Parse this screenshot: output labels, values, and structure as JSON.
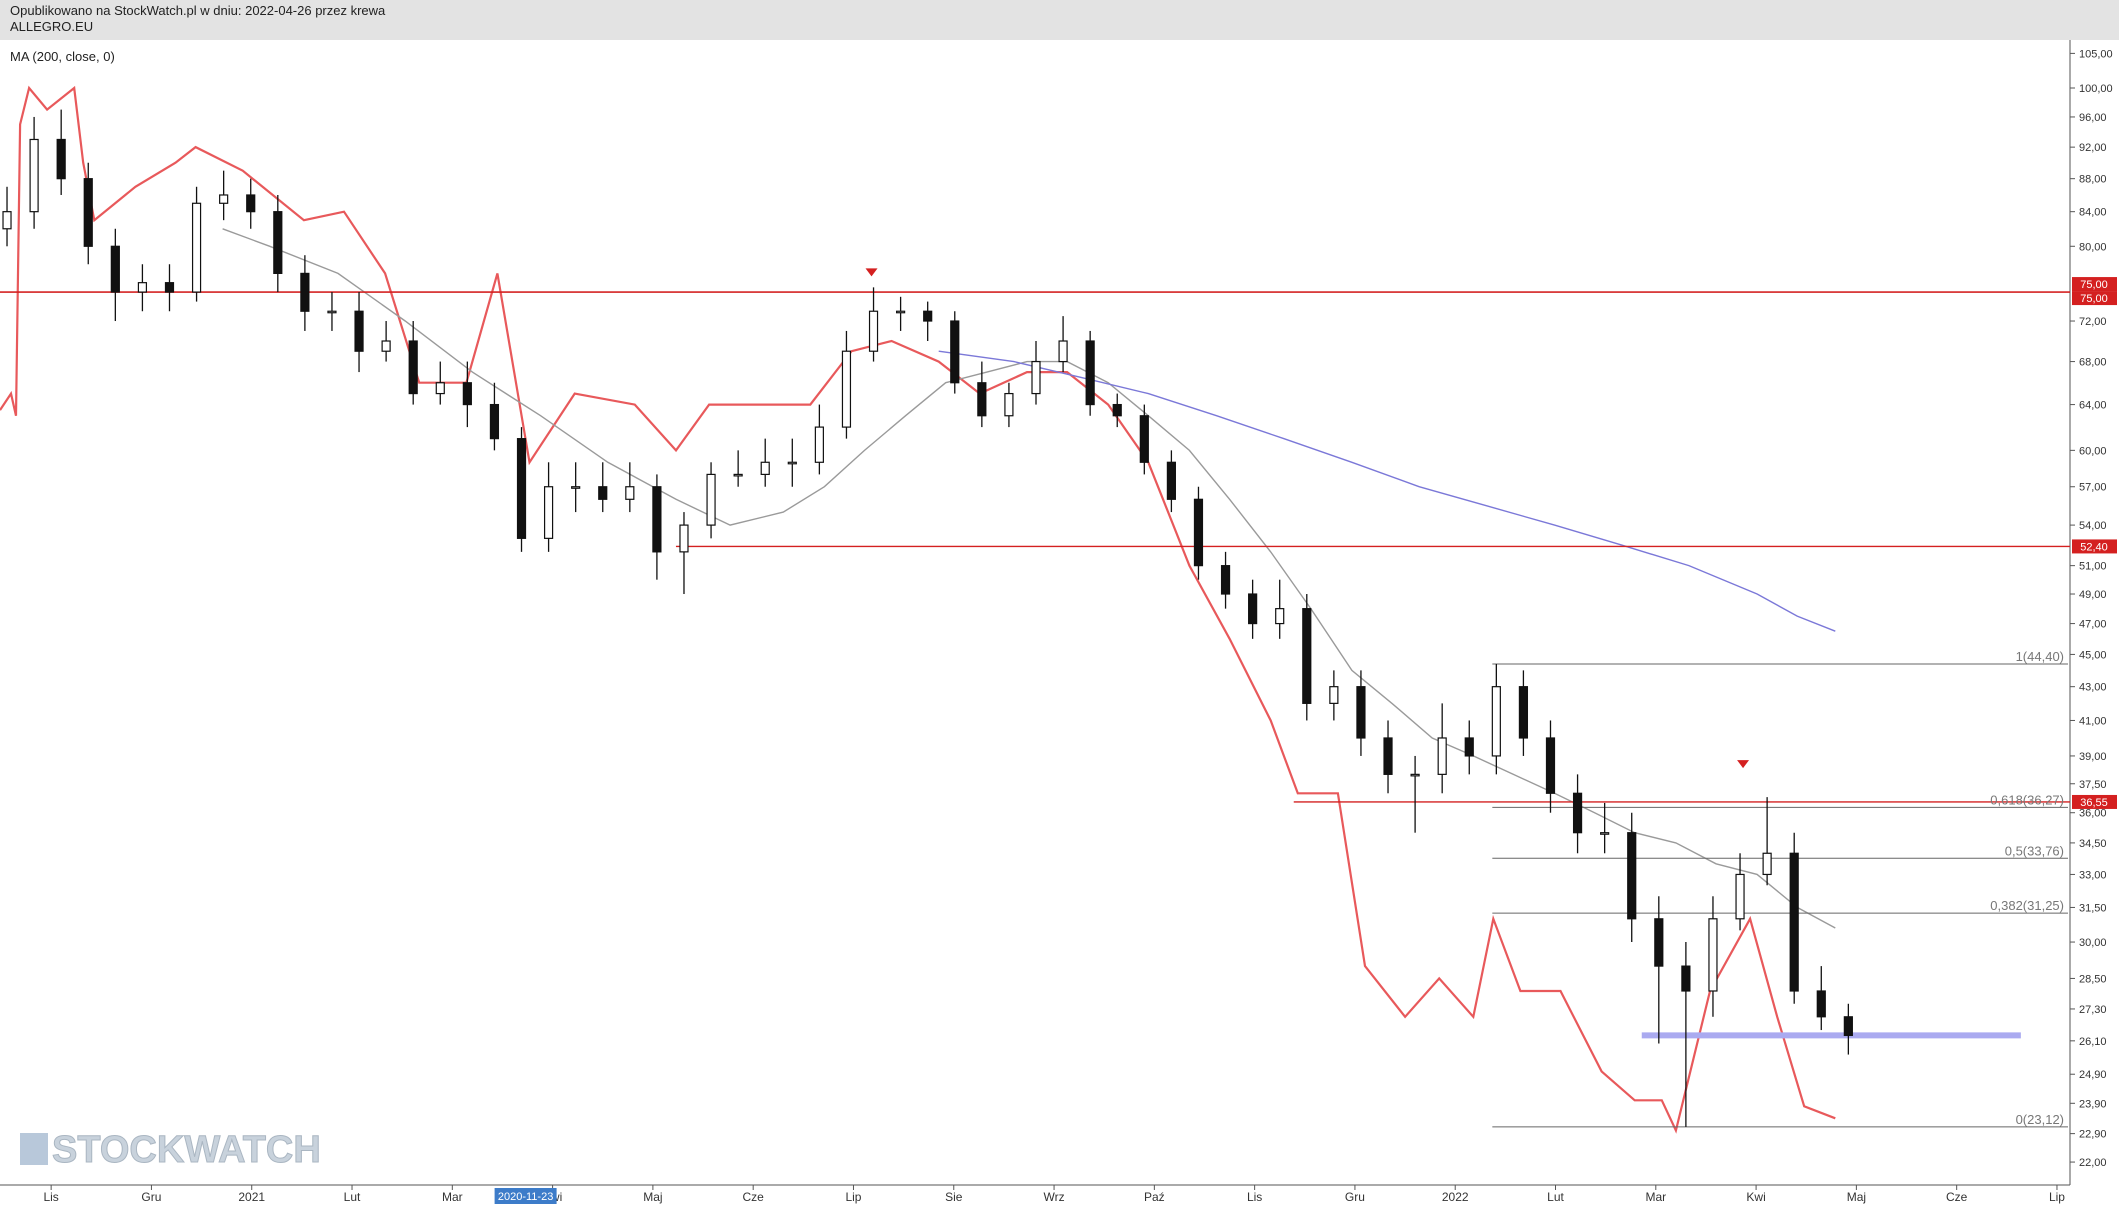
{
  "header": {
    "published": "Opublikowano na StockWatch.pl w dniu: 2022-04-26 przez krewa",
    "symbol": "ALLEGRO.EU"
  },
  "indicator_label": "MA (200, close, 0)",
  "watermark": "STOCKWATCH",
  "chart_data": {
    "type": "candlestick",
    "log_scale": true,
    "grid": false,
    "crosshair_label": "2020-11-23",
    "xlim": [
      0.49,
      21.13
    ],
    "xticks": [
      {
        "value": 1,
        "label": "Lis"
      },
      {
        "value": 2,
        "label": "Gru"
      },
      {
        "value": 3,
        "label": "2021"
      },
      {
        "value": 4,
        "label": "Lut"
      },
      {
        "value": 5,
        "label": "Mar"
      },
      {
        "value": 6,
        "label": "Kwi"
      },
      {
        "value": 7,
        "label": "Maj"
      },
      {
        "value": 8,
        "label": "Cze"
      },
      {
        "value": 9,
        "label": "Lip"
      },
      {
        "value": 10,
        "label": "Sie"
      },
      {
        "value": 11,
        "label": "Wrz"
      },
      {
        "value": 12,
        "label": "Paź"
      },
      {
        "value": 13,
        "label": "Lis"
      },
      {
        "value": 14,
        "label": "Gru"
      },
      {
        "value": 15,
        "label": "2022"
      },
      {
        "value": 16,
        "label": "Lut"
      },
      {
        "value": 17,
        "label": "Mar"
      },
      {
        "value": 18,
        "label": "Kwi"
      },
      {
        "value": 19,
        "label": "Maj"
      },
      {
        "value": 20,
        "label": "Cze"
      },
      {
        "value": 21,
        "label": "Lip"
      }
    ],
    "ylim": [
      21.3,
      107
    ],
    "yticks": [
      {
        "value": 105,
        "label": "105,00"
      },
      {
        "value": 100,
        "label": "100,00"
      },
      {
        "value": 96,
        "label": "96,00"
      },
      {
        "value": 92,
        "label": "92,00"
      },
      {
        "value": 88,
        "label": "88,00"
      },
      {
        "value": 84,
        "label": "84,00"
      },
      {
        "value": 80,
        "label": "80,00"
      },
      {
        "value": 72,
        "label": "72,00"
      },
      {
        "value": 68,
        "label": "68,00"
      },
      {
        "value": 64,
        "label": "64,00"
      },
      {
        "value": 60,
        "label": "60,00"
      },
      {
        "value": 57,
        "label": "57,00"
      },
      {
        "value": 54,
        "label": "54,00"
      },
      {
        "value": 51,
        "label": "51,00"
      },
      {
        "value": 49,
        "label": "49,00"
      },
      {
        "value": 47,
        "label": "47,00"
      },
      {
        "value": 45,
        "label": "45,00"
      },
      {
        "value": 43,
        "label": "43,00"
      },
      {
        "value": 41,
        "label": "41,00"
      },
      {
        "value": 39,
        "label": "39,00"
      },
      {
        "value": 37.5,
        "label": "37,50"
      },
      {
        "value": 36,
        "label": "36,00"
      },
      {
        "value": 34.5,
        "label": "34,50"
      },
      {
        "value": 33,
        "label": "33,00"
      },
      {
        "value": 31.5,
        "label": "31,50"
      },
      {
        "value": 30,
        "label": "30,00"
      },
      {
        "value": 28.5,
        "label": "28,50"
      },
      {
        "value": 27.3,
        "label": "27,30"
      },
      {
        "value": 26.1,
        "label": "26,10"
      },
      {
        "value": 24.9,
        "label": "24,90"
      },
      {
        "value": 23.9,
        "label": "23,90"
      },
      {
        "value": 22.9,
        "label": "22,90"
      },
      {
        "value": 22,
        "label": "22,00"
      }
    ],
    "candle_color": "#111111",
    "x": [
      0.56,
      0.83,
      1.1,
      1.37,
      1.64,
      1.91,
      2.18,
      2.45,
      2.72,
      2.99,
      3.26,
      3.53,
      3.8,
      4.07,
      4.34,
      4.61,
      4.88,
      5.15,
      5.42,
      5.69,
      5.96,
      6.23,
      6.5,
      6.77,
      7.04,
      7.31,
      7.58,
      7.85,
      8.12,
      8.39,
      8.66,
      8.93,
      9.2,
      9.47,
      9.74,
      10.01,
      10.28,
      10.55,
      10.82,
      11.09,
      11.36,
      11.63,
      11.9,
      12.17,
      12.44,
      12.71,
      12.98,
      13.25,
      13.52,
      13.79,
      14.06,
      14.33,
      14.6,
      14.87,
      15.14,
      15.41,
      15.68,
      15.95,
      16.22,
      16.49,
      16.76,
      17.03,
      17.3,
      17.57,
      17.84,
      18.11,
      18.38,
      18.65,
      18.92
    ],
    "open": [
      82,
      84,
      93,
      88,
      80,
      75,
      76,
      75,
      85,
      86,
      84,
      77,
      73,
      73,
      69,
      70,
      65,
      66,
      64,
      61,
      53,
      57,
      57,
      56,
      57,
      52,
      54,
      58,
      58,
      59,
      59,
      62,
      69,
      73,
      73,
      72,
      66,
      63,
      65,
      68,
      70,
      64,
      63,
      59,
      56,
      51,
      49,
      47,
      48,
      42,
      43,
      40,
      38,
      38,
      40,
      39,
      43,
      40,
      37,
      35,
      35,
      31,
      29,
      28,
      31,
      33,
      34,
      28,
      27
    ],
    "high": [
      87,
      96,
      97,
      90,
      82,
      78,
      78,
      87,
      89,
      88,
      86,
      79,
      75,
      75,
      72,
      72,
      68,
      68,
      66,
      62,
      59,
      59,
      59,
      59,
      58,
      55,
      59,
      60,
      61,
      61,
      64,
      71,
      75.5,
      74.5,
      74,
      73,
      68,
      66,
      70,
      72.5,
      71,
      65,
      64,
      60,
      57,
      52,
      50,
      50,
      49,
      44,
      44,
      41,
      39,
      42,
      41,
      44.4,
      44,
      41,
      38,
      36.5,
      36,
      32,
      30,
      32,
      34,
      36.8,
      35,
      29,
      27.5
    ],
    "low": [
      80,
      82,
      86,
      78,
      72,
      73,
      73,
      74,
      83,
      82,
      75,
      71,
      71,
      67,
      68,
      64,
      64,
      62,
      60,
      52,
      52,
      55,
      55,
      55,
      50,
      49,
      53,
      57,
      57,
      57,
      58,
      61,
      68,
      71,
      70,
      65,
      62,
      62,
      64,
      67,
      63,
      62,
      58,
      55,
      50,
      48,
      46,
      46,
      41,
      41,
      39,
      37,
      35,
      37,
      38,
      38,
      39,
      36,
      34,
      34,
      30,
      26,
      23.12,
      27,
      30.5,
      32.5,
      27.5,
      26.5,
      25.6
    ],
    "close": [
      84,
      93,
      88,
      80,
      75,
      76,
      75,
      85,
      86,
      84,
      77,
      73,
      73,
      69,
      70,
      65,
      66,
      64,
      61,
      53,
      57,
      57,
      56,
      57,
      52,
      54,
      58,
      58,
      59,
      59,
      62,
      69,
      73,
      73,
      72,
      66,
      63,
      65,
      68,
      70,
      64,
      63,
      59,
      56,
      51,
      49,
      47,
      48,
      42,
      43,
      40,
      38,
      38,
      40,
      39,
      43,
      40,
      37,
      35,
      35,
      31,
      29,
      28,
      31,
      33,
      34,
      28,
      27,
      26.3
    ],
    "series": [
      {
        "color": "#e8595b",
        "x": [
          0.49,
          0.6,
          0.65,
          0.69,
          0.78,
          0.96,
          1.23,
          1.32,
          1.43,
          1.84,
          2.24,
          2.44,
          2.91,
          3.52,
          3.92,
          4.33,
          4.67,
          5.14,
          5.45,
          5.77,
          6.22,
          6.82,
          7.23,
          7.56,
          8.1,
          8.57,
          8.98,
          9.38,
          9.85,
          10.26,
          10.73,
          11.13,
          11.54,
          11.94,
          12.35,
          12.75,
          13.16,
          13.43,
          13.83,
          14.1,
          14.5,
          14.84,
          15.18,
          15.38,
          15.65,
          16.05,
          16.46,
          16.79,
          17.06,
          17.2,
          17.54,
          17.94,
          18.21,
          18.48,
          18.79
        ],
        "values": [
          63.5,
          65,
          63,
          95,
          100,
          97,
          100,
          90,
          83,
          87,
          90,
          92,
          89,
          83,
          84,
          77,
          66,
          66,
          77,
          59,
          65,
          64,
          60,
          64,
          64,
          64,
          69,
          70,
          68,
          65,
          67,
          67,
          64,
          59,
          51,
          46,
          41,
          37,
          37,
          29,
          27,
          28.5,
          27,
          31,
          28,
          28,
          25,
          24,
          24,
          23,
          28,
          31,
          27,
          23.8,
          23.4
        ]
      },
      {
        "color": "#9a9a9a",
        "x": [
          2.71,
          3.18,
          3.86,
          4.53,
          5.2,
          5.88,
          6.55,
          7.23,
          7.77,
          8.3,
          8.71,
          9.11,
          9.52,
          9.92,
          10.33,
          10.73,
          11.13,
          11.54,
          11.94,
          12.35,
          12.75,
          13.16,
          13.56,
          13.97,
          14.37,
          14.77,
          15.18,
          15.58,
          15.99,
          16.39,
          16.79,
          17.2,
          17.6,
          18.01,
          18.41,
          18.79
        ],
        "values": [
          82,
          80,
          77,
          72,
          67,
          63,
          59,
          56,
          54,
          55,
          57,
          60,
          63,
          66,
          67,
          68,
          68,
          66,
          63,
          60,
          56,
          52,
          48,
          44,
          42,
          40,
          39,
          38,
          37,
          36,
          35,
          34.5,
          33.5,
          33,
          31.5,
          30.6
        ]
      },
      {
        "color": "#7b78d8",
        "x": [
          9.85,
          10.6,
          11.27,
          11.94,
          12.62,
          13.29,
          13.97,
          14.64,
          15.31,
          15.99,
          16.66,
          17.33,
          18.01,
          18.41,
          18.79
        ],
        "values": [
          69,
          68,
          66.5,
          65,
          63,
          61,
          59,
          57,
          55.5,
          54,
          52.5,
          51,
          49,
          47.5,
          46.5
        ]
      }
    ],
    "hlines": [
      {
        "value": 75,
        "label": "75,00",
        "x0": 0.49
      },
      {
        "value": 75,
        "label": "75,00",
        "x0": 0.49
      },
      {
        "value": 52.4,
        "label": "52,40",
        "x0": 7.23
      },
      {
        "value": 36.55,
        "label": "36,55",
        "x0": 13.39
      }
    ],
    "hline_color": "#d42020",
    "fib_x0": 15.37,
    "fib_levels": [
      {
        "value": 44.4,
        "label": "1(44,40)"
      },
      {
        "value": 36.27,
        "label": "0,618(36,27)"
      },
      {
        "value": 33.76,
        "label": "0,5(33,76)"
      },
      {
        "value": 31.25,
        "label": "0,382(31,25)"
      },
      {
        "value": 23.12,
        "label": "0(23,12)"
      }
    ],
    "support_band": {
      "value": 26.3,
      "x0": 16.86,
      "x1": 20.64,
      "color": "#aaaaf0"
    },
    "markers": [
      {
        "x": 9.18,
        "y": 77
      },
      {
        "x": 17.87,
        "y": 38.5
      }
    ]
  }
}
